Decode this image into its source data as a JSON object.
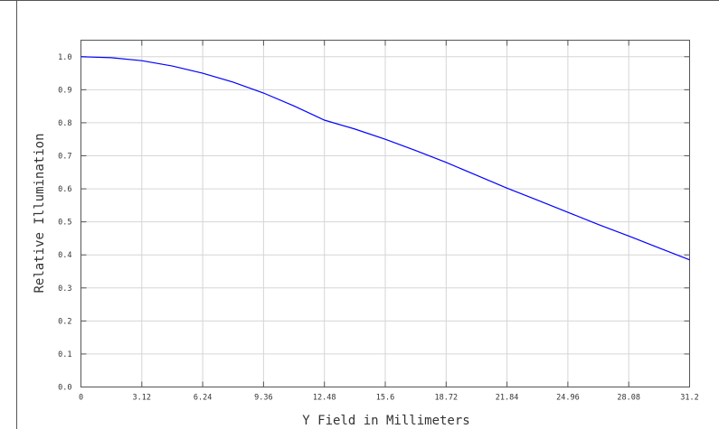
{
  "chart_data": {
    "type": "line",
    "title": "",
    "xlabel": "Y Field in Millimeters",
    "ylabel": "Relative Illumination",
    "xlim": [
      0,
      31.2
    ],
    "ylim": [
      0,
      1.05
    ],
    "x_ticks": [
      "0",
      "3.12",
      "6.24",
      "9.36",
      "12.48",
      "15.6",
      "18.72",
      "21.84",
      "24.96",
      "28.08",
      "31.2"
    ],
    "y_ticks": [
      "0.0",
      "0.1",
      "0.2",
      "0.3",
      "0.4",
      "0.5",
      "0.6",
      "0.7",
      "0.8",
      "0.9",
      "1.0"
    ],
    "grid": true,
    "series": [
      {
        "color": "#0000ff",
        "x": [
          0,
          1.56,
          3.12,
          4.68,
          6.24,
          7.8,
          9.36,
          10.92,
          12.48,
          14.04,
          15.6,
          17.16,
          18.72,
          20.28,
          21.84,
          23.4,
          24.96,
          26.52,
          28.08,
          29.64,
          31.2
        ],
        "y": [
          1.0,
          0.997,
          0.988,
          0.972,
          0.95,
          0.923,
          0.89,
          0.851,
          0.808,
          0.781,
          0.75,
          0.716,
          0.68,
          0.641,
          0.602,
          0.566,
          0.529,
          0.492,
          0.457,
          0.421,
          0.385
        ]
      }
    ]
  }
}
